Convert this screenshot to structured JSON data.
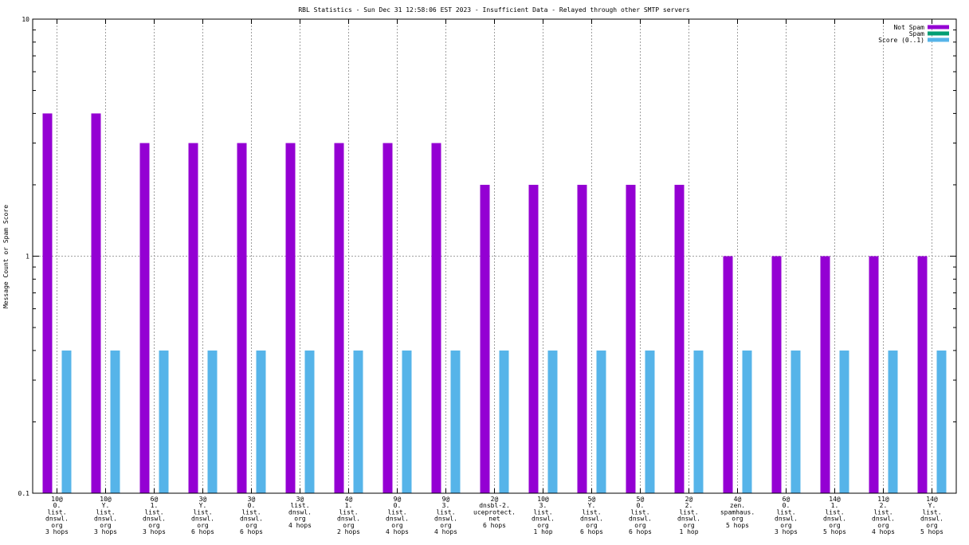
{
  "chart_data": {
    "type": "bar",
    "title": "RBL Statistics - Sun Dec 31 12:58:06 EST 2023 - Insufficient Data - Relayed through other SMTP servers",
    "xlabel": "",
    "ylabel": "Message Count or Spam Score",
    "yscale": "log",
    "ylim": [
      0.1,
      10
    ],
    "yticks": [
      "0.1",
      "1",
      "10"
    ],
    "grid": true,
    "legend_position": "top-right",
    "categories": [
      [
        "10@",
        "0.",
        "list.",
        "dnswl.",
        "org",
        "3 hops"
      ],
      [
        "10@",
        "Y.",
        "list.",
        "dnswl.",
        "org",
        "3 hops"
      ],
      [
        "6@",
        "1.",
        "list.",
        "dnswl.",
        "org",
        "3 hops"
      ],
      [
        "3@",
        "Y.",
        "list.",
        "dnswl.",
        "org",
        "6 hops"
      ],
      [
        "3@",
        "0.",
        "list.",
        "dnswl.",
        "org",
        "6 hops"
      ],
      [
        "3@",
        "list.",
        "dnswl.",
        "org",
        "4 hops"
      ],
      [
        "4@",
        "1.",
        "list.",
        "dnswl.",
        "org",
        "2 hops"
      ],
      [
        "9@",
        "0.",
        "list.",
        "dnswl.",
        "org",
        "4 hops"
      ],
      [
        "9@",
        "3.",
        "list.",
        "dnswl.",
        "org",
        "4 hops"
      ],
      [
        "2@",
        "dnsbl-2.",
        "uceprotect.",
        "net",
        "6 hops"
      ],
      [
        "10@",
        "3.",
        "list.",
        "dnswl.",
        "org",
        "1 hop"
      ],
      [
        "5@",
        "Y.",
        "list.",
        "dnswl.",
        "org",
        "6 hops"
      ],
      [
        "5@",
        "0.",
        "list.",
        "dnswl.",
        "org",
        "6 hops"
      ],
      [
        "2@",
        "2.",
        "list.",
        "dnswl.",
        "org",
        "1 hop"
      ],
      [
        "4@",
        "zen.",
        "spamhaus.",
        "org",
        "5 hops"
      ],
      [
        "6@",
        "0.",
        "list.",
        "dnswl.",
        "org",
        "3 hops"
      ],
      [
        "14@",
        "1.",
        "list.",
        "dnswl.",
        "org",
        "5 hops"
      ],
      [
        "11@",
        "2.",
        "list.",
        "dnswl.",
        "org",
        "4 hops"
      ],
      [
        "14@",
        "Y.",
        "list.",
        "dnswl.",
        "org",
        "5 hops"
      ]
    ],
    "series": [
      {
        "name": "Not Spam",
        "color": "#9400d3",
        "values": [
          4,
          4,
          3,
          3,
          3,
          3,
          3,
          3,
          3,
          2,
          2,
          2,
          2,
          2,
          1,
          1,
          1,
          1,
          1
        ]
      },
      {
        "name": "Spam",
        "color": "#009e73",
        "values": [
          0,
          0,
          0,
          0,
          0,
          0,
          0,
          0,
          0,
          0,
          0,
          0,
          0,
          0,
          0,
          0,
          0,
          0,
          0
        ]
      },
      {
        "name": "Score (0..1)",
        "color": "#56b4e9",
        "values": [
          0.4,
          0.4,
          0.4,
          0.4,
          0.4,
          0.4,
          0.4,
          0.4,
          0.4,
          0.4,
          0.4,
          0.4,
          0.4,
          0.4,
          0.4,
          0.4,
          0.4,
          0.4,
          0.4
        ]
      }
    ]
  }
}
